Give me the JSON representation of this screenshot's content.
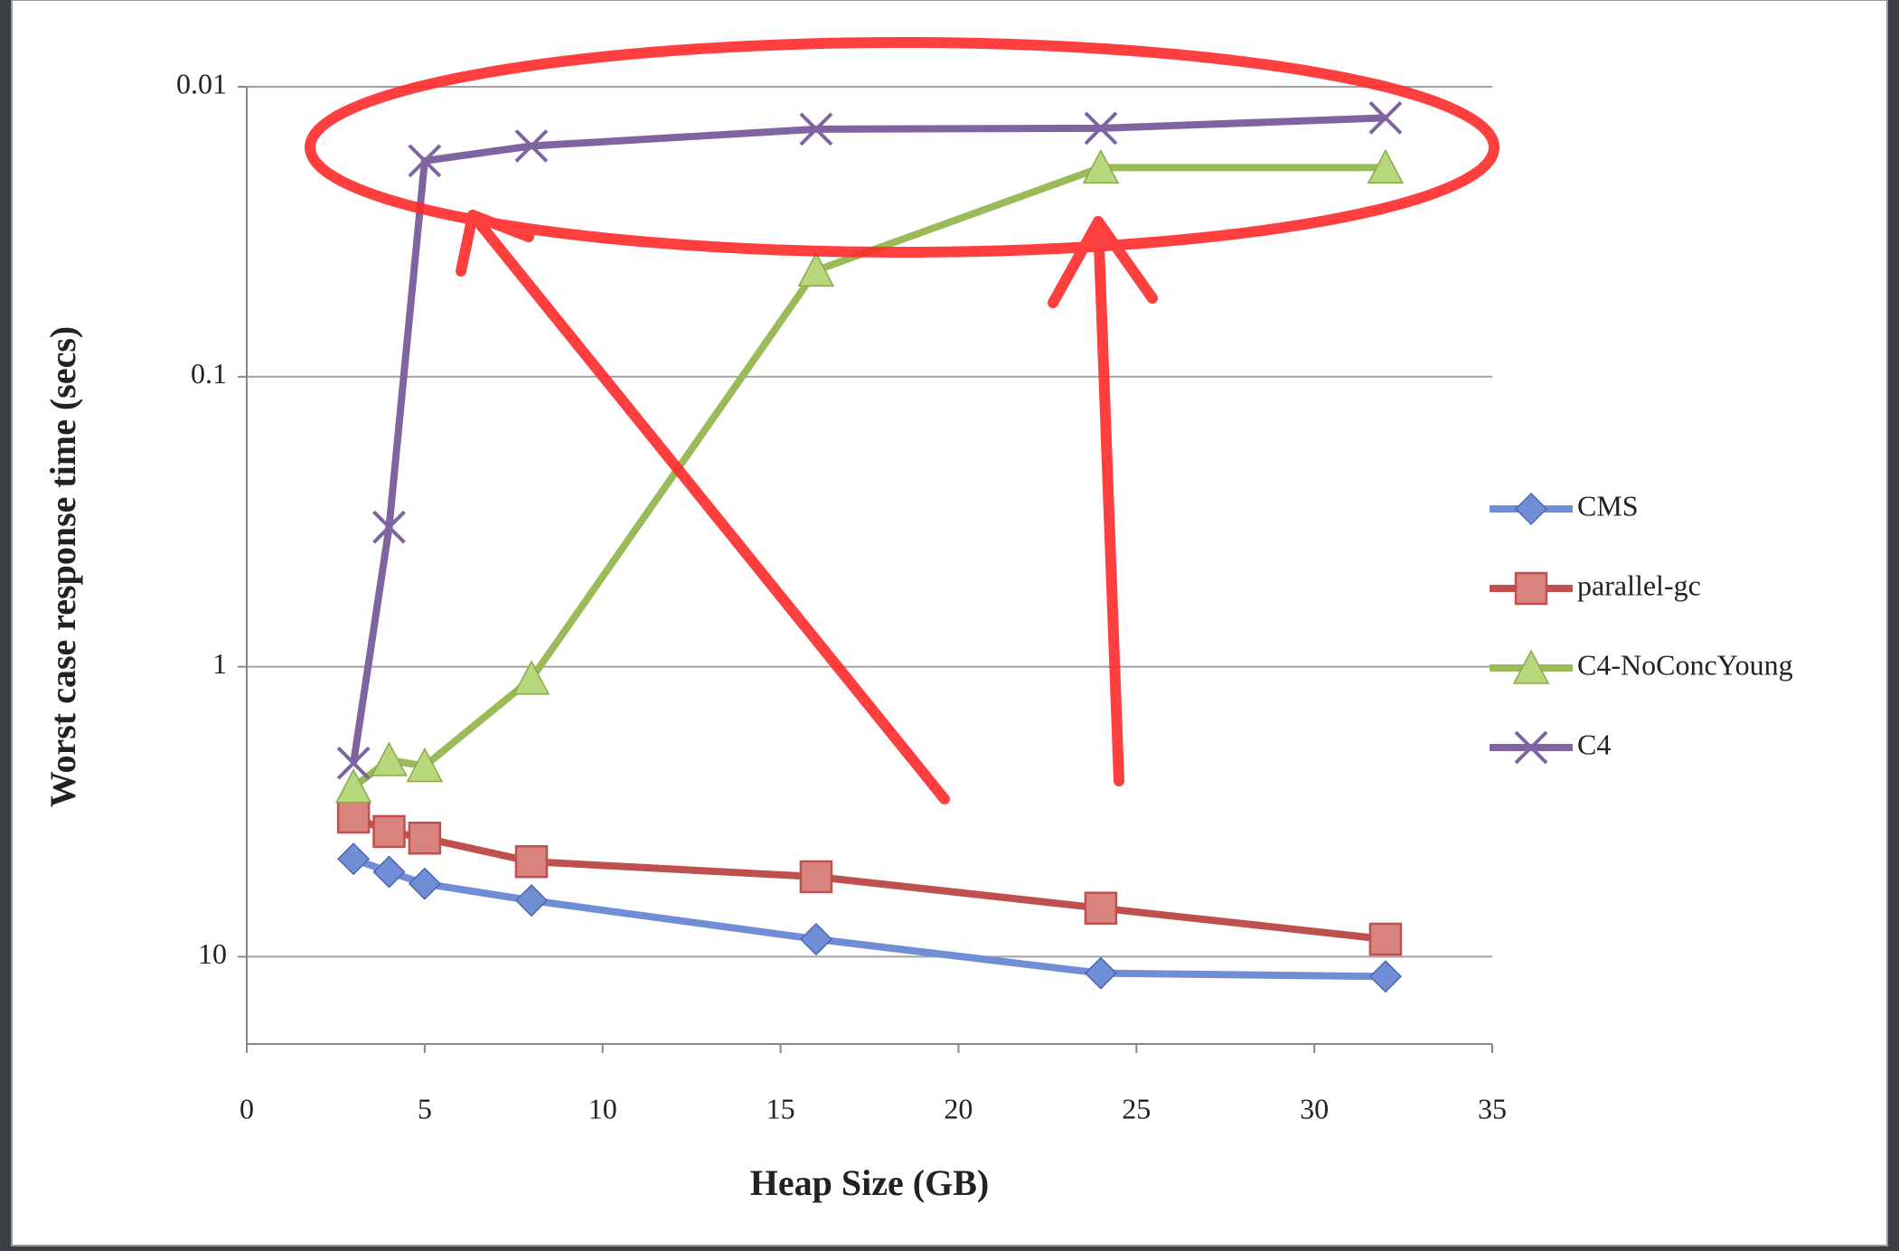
{
  "chart_data": {
    "type": "line",
    "x_label": "Heap Size (GB)",
    "y_label": "Worst case response time (secs)",
    "xlim": [
      0,
      35
    ],
    "xticks": [
      0,
      5,
      10,
      15,
      20,
      25,
      30,
      35
    ],
    "ylim": [
      0.01,
      20
    ],
    "yticks": [
      0.01,
      0.1,
      1,
      10
    ],
    "y_log": true,
    "y_inverted": true,
    "grid": true,
    "legend": "right",
    "series": [
      {
        "name": "CMS",
        "color": "#6f8ed6",
        "marker": "diamond",
        "x": [
          3,
          4,
          5,
          8,
          16,
          24,
          32
        ],
        "values": [
          4.6,
          5.1,
          5.6,
          6.4,
          8.7,
          11.4,
          11.7
        ]
      },
      {
        "name": "parallel-gc",
        "color": "#c0504d",
        "marker": "square",
        "x": [
          3,
          4,
          5,
          8,
          16,
          24,
          32
        ],
        "values": [
          3.3,
          3.7,
          3.9,
          4.7,
          5.3,
          6.8,
          8.7
        ]
      },
      {
        "name": "C4-NoConcYoung",
        "color": "#9bbb59",
        "marker": "triangle",
        "x": [
          3,
          4,
          5,
          8,
          16,
          24,
          32
        ],
        "values": [
          2.6,
          2.1,
          2.2,
          1.1,
          0.043,
          0.019,
          0.019
        ]
      },
      {
        "name": "C4",
        "color": "#8064a2",
        "marker": "cross",
        "x": [
          3,
          4,
          5,
          8,
          16,
          24,
          32
        ],
        "values": [
          2.15,
          0.33,
          0.018,
          0.016,
          0.014,
          0.0139,
          0.0128
        ]
      }
    ]
  }
}
